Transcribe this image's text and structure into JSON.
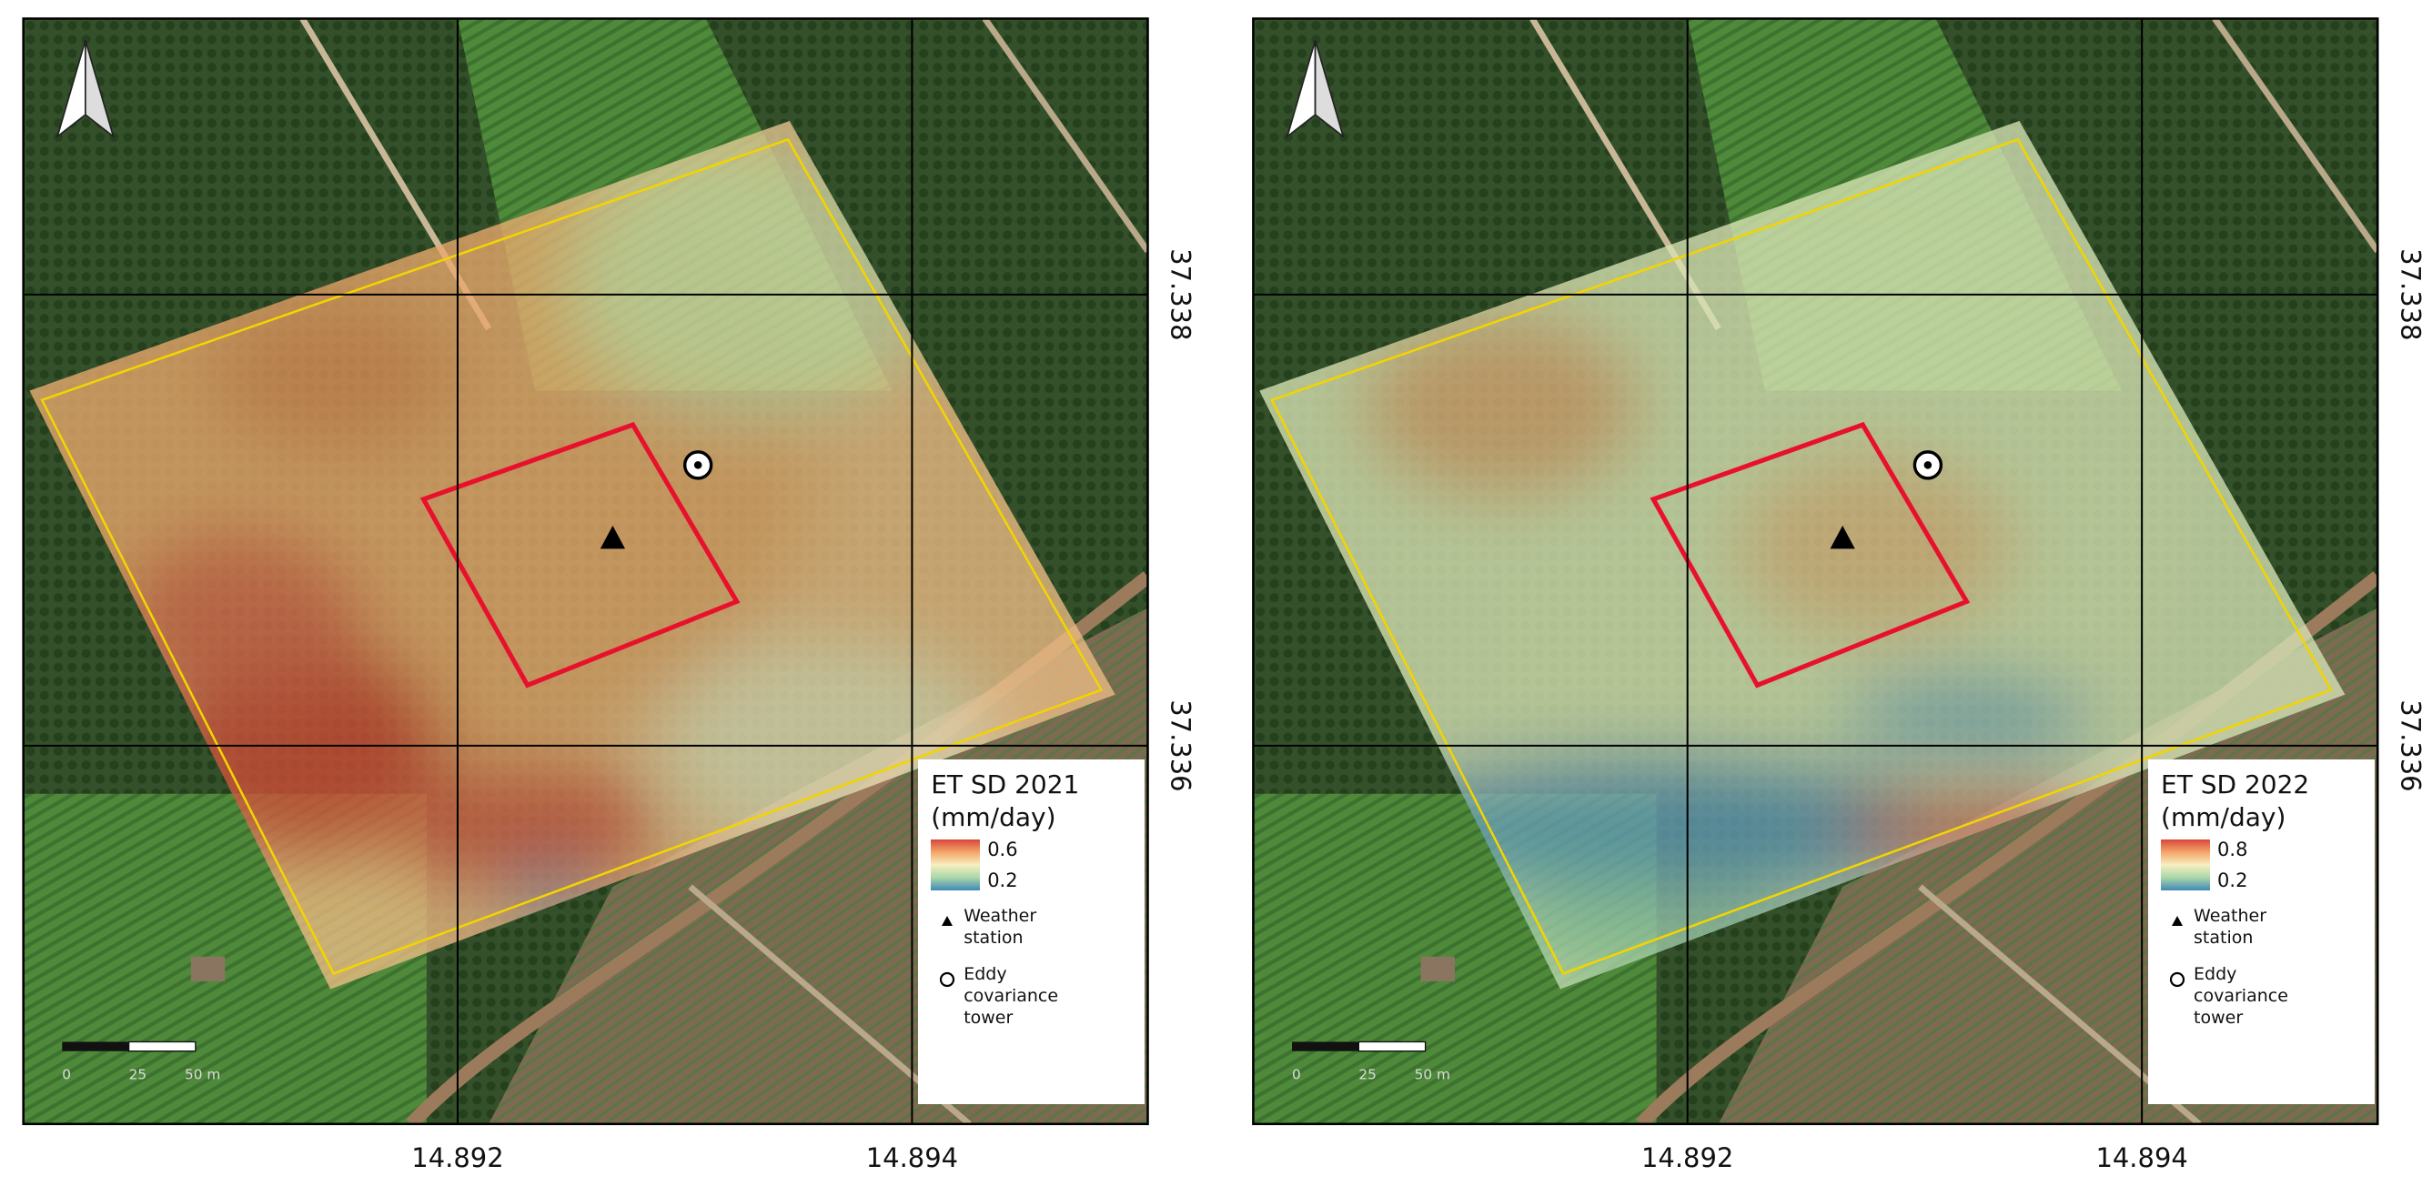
{
  "panels": [
    {
      "legend": {
        "title": "ET SD 2021",
        "unit": "(mm/day)",
        "max": 0.6,
        "min": 0.2,
        "colors": [
          "#d7483a",
          "#f4a66a",
          "#f6efc0",
          "#a9d7a8",
          "#3f88b8"
        ],
        "items": [
          "Weather station",
          "Eddy covariance tower"
        ]
      },
      "scale_bar": [
        "0",
        "25",
        "50 m"
      ],
      "x_labels": [
        14.892,
        14.894
      ],
      "y_labels": [
        37.338,
        37.336
      ]
    },
    {
      "legend": {
        "title": "ET SD 2022",
        "unit": "(mm/day)",
        "max": 0.8,
        "min": 0.2,
        "colors": [
          "#d7483a",
          "#f4a66a",
          "#f6efc0",
          "#a9d7a8",
          "#3f88b8"
        ],
        "items": [
          "Weather station",
          "Eddy covariance tower"
        ]
      },
      "scale_bar": [
        "0",
        "25",
        "50 m"
      ],
      "x_labels": [
        14.892,
        14.894
      ],
      "y_labels": [
        37.338,
        37.336
      ]
    }
  ]
}
